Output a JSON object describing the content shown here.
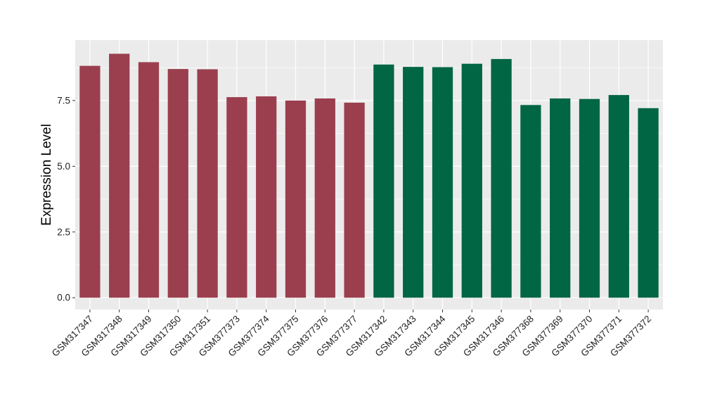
{
  "chart_data": {
    "type": "bar",
    "title": "",
    "xlabel": "",
    "ylabel": "Expression Level",
    "ylim": [
      -0.45,
      9.8
    ],
    "yticks": [
      0.0,
      2.5,
      5.0,
      7.5
    ],
    "ytick_labels": [
      "0.0",
      "2.5",
      "5.0",
      "7.5"
    ],
    "grid": true,
    "legend": "none",
    "categories": [
      "GSM317347",
      "GSM317348",
      "GSM317349",
      "GSM317350",
      "GSM317351",
      "GSM377373",
      "GSM377374",
      "GSM377375",
      "GSM377376",
      "GSM377377",
      "GSM317342",
      "GSM317343",
      "GSM317344",
      "GSM317345",
      "GSM317346",
      "GSM377368",
      "GSM377369",
      "GSM377370",
      "GSM377371",
      "GSM377372"
    ],
    "values": [
      8.82,
      9.28,
      8.96,
      8.7,
      8.69,
      7.63,
      7.66,
      7.5,
      7.58,
      7.42,
      8.87,
      8.78,
      8.77,
      8.9,
      9.08,
      7.33,
      7.58,
      7.56,
      7.71,
      7.21
    ],
    "bar_colors": [
      "#9b3f4e",
      "#9b3f4e",
      "#9b3f4e",
      "#9b3f4e",
      "#9b3f4e",
      "#9b3f4e",
      "#9b3f4e",
      "#9b3f4e",
      "#9b3f4e",
      "#9b3f4e",
      "#006643",
      "#006643",
      "#006643",
      "#006643",
      "#006643",
      "#006643",
      "#006643",
      "#006643",
      "#006643",
      "#006643"
    ],
    "panel_background": "#ebebeb",
    "grid_color": "#ffffff"
  }
}
